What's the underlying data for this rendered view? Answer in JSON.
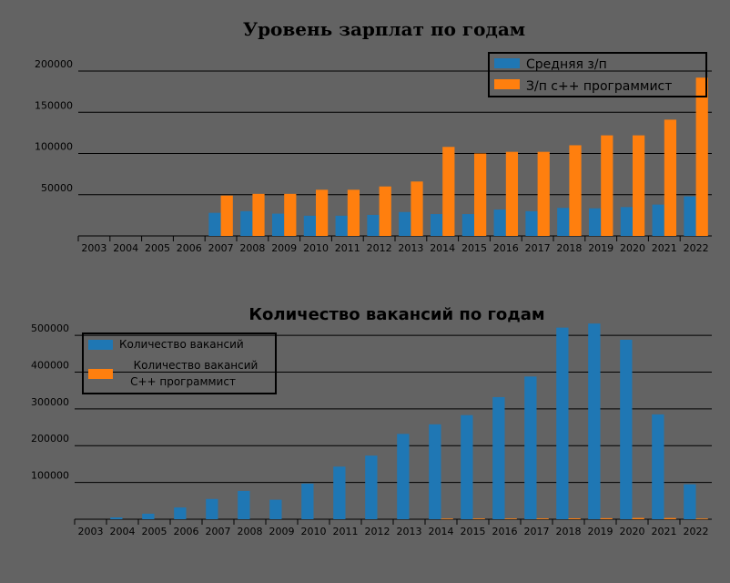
{
  "colors": {
    "background": "#636363",
    "blue": "#1f77b4",
    "orange": "#ff7f0e",
    "grid": "#000000"
  },
  "chart_data": [
    {
      "type": "bar",
      "title": "Уровень зарплат по годам",
      "categories": [
        "2003",
        "2004",
        "2005",
        "2006",
        "2007",
        "2008",
        "2009",
        "2010",
        "2011",
        "2012",
        "2013",
        "2014",
        "2015",
        "2016",
        "2017",
        "2018",
        "2019",
        "2020",
        "2021",
        "2022"
      ],
      "series": [
        {
          "name": "Средняя з/п",
          "color": "#1f77b4",
          "values": [
            0,
            0,
            0,
            0,
            28000,
            30000,
            27000,
            24500,
            24500,
            25500,
            29000,
            26500,
            26500,
            32000,
            30000,
            34000,
            33500,
            35000,
            38000,
            48000
          ]
        },
        {
          "name": "З/п с++ программист",
          "color": "#ff7f0e",
          "values": [
            0,
            0,
            0,
            0,
            49000,
            51000,
            51000,
            56000,
            56000,
            60000,
            66000,
            108000,
            100000,
            102000,
            102000,
            110000,
            122000,
            122000,
            141000,
            192000
          ]
        }
      ],
      "yticks": [
        50000,
        100000,
        150000,
        200000
      ],
      "ylim": [
        0,
        200000
      ],
      "grid": true,
      "legend": "top-right"
    },
    {
      "type": "bar",
      "title": "Количество вакансий по годам",
      "categories": [
        "2003",
        "2004",
        "2005",
        "2006",
        "2007",
        "2008",
        "2009",
        "2010",
        "2011",
        "2012",
        "2013",
        "2014",
        "2015",
        "2016",
        "2017",
        "2018",
        "2019",
        "2020",
        "2021",
        "2022"
      ],
      "series": [
        {
          "name": "Количество вакансий",
          "color": "#1f77b4",
          "values": [
            0,
            5000,
            15000,
            32000,
            55000,
            77000,
            53000,
            97000,
            143000,
            173000,
            232000,
            258000,
            283000,
            332000,
            388000,
            521000,
            532000,
            488000,
            285000,
            95000
          ]
        },
        {
          "name_lines": [
            "Количество вакансий",
            "С++ программист"
          ],
          "color": "#ff7f0e",
          "values": [
            0,
            0,
            0,
            0,
            0,
            0,
            0,
            0,
            0,
            0,
            0,
            1800,
            2000,
            2000,
            2200,
            2500,
            2800,
            3500,
            3300,
            1800
          ]
        }
      ],
      "yticks": [
        100000,
        200000,
        300000,
        400000,
        500000
      ],
      "ylim": [
        0,
        530000
      ],
      "grid": true,
      "legend": "top-left"
    }
  ]
}
